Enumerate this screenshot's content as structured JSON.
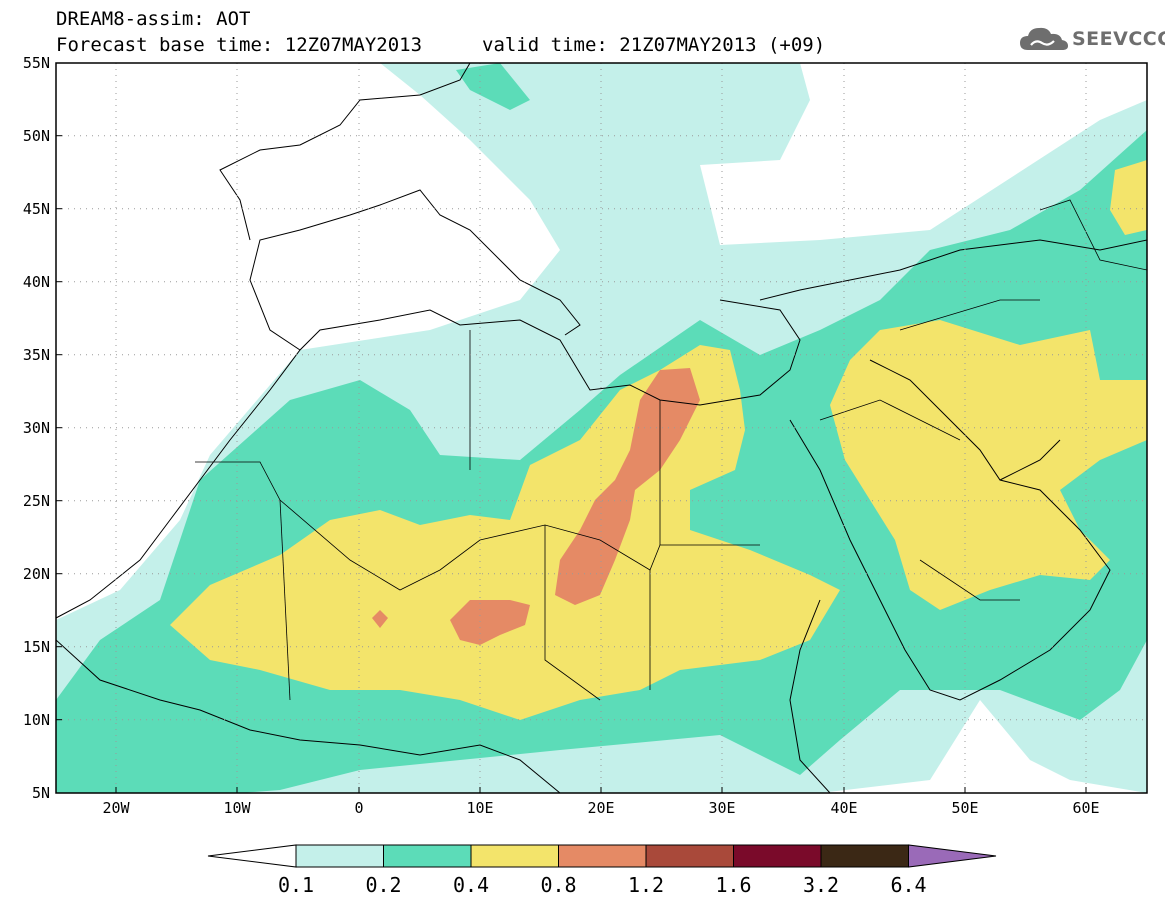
{
  "header": {
    "line1": "DREAM8-assim: AOT",
    "line2": "Forecast base time: 12Z07MAY2013",
    "line3": "valid time: 21Z07MAY2013 (+09)"
  },
  "logo": {
    "text": "SEEVCCC",
    "icon": "cloud-icon"
  },
  "map": {
    "lon_range": [
      -25,
      65
    ],
    "lat_range": [
      5,
      55
    ],
    "lat_labels": [
      "55N",
      "50N",
      "45N",
      "40N",
      "35N",
      "30N",
      "25N",
      "20N",
      "15N",
      "10N",
      "5N"
    ],
    "lon_labels": [
      "20W",
      "10W",
      "0",
      "10E",
      "20E",
      "30E",
      "40E",
      "50E",
      "60E"
    ],
    "gridlines": "dotted"
  },
  "colorbar": {
    "labels": [
      "0.1",
      "0.2",
      "0.4",
      "0.8",
      "1.2",
      "1.6",
      "3.2",
      "6.4"
    ],
    "colors": [
      "#c4f0ea",
      "#5cdcb8",
      "#f3e46b",
      "#e58a65",
      "#a9493a",
      "#7a0a2a",
      "#3b2815"
    ],
    "extend_low_color": "#ffffff",
    "extend_high_color": "#9a6ab8"
  },
  "colors": {
    "c1": "#c4f0ea",
    "c2": "#5cdcb8",
    "c3": "#f3e46b",
    "c4": "#e58a65"
  }
}
